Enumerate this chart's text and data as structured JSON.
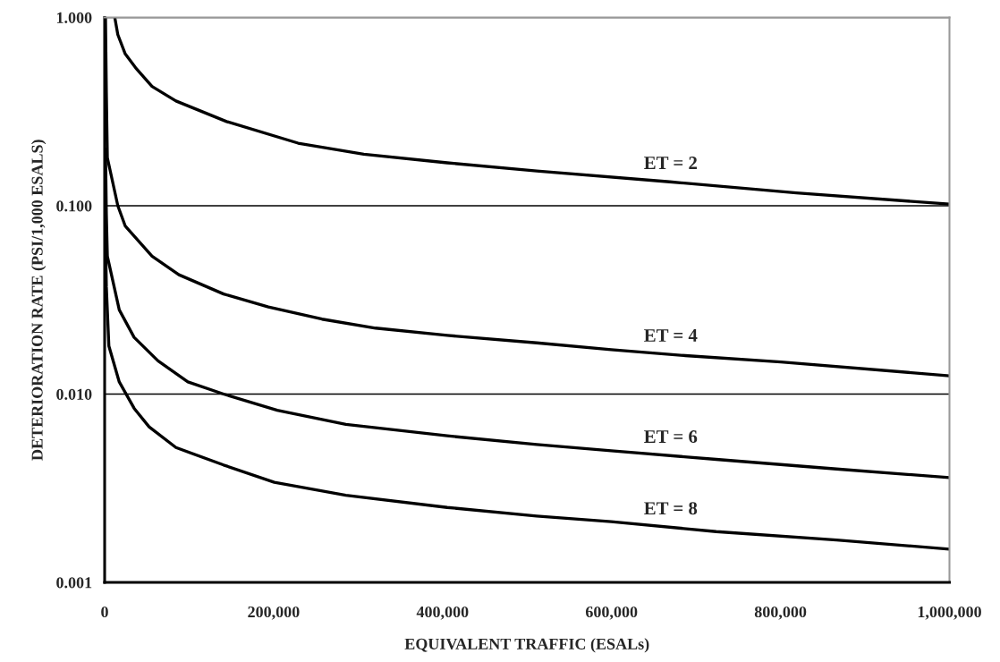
{
  "chart_data": {
    "type": "line",
    "xlabel": "EQUIVALENT TRAFFIC (ESALs)",
    "ylabel": "DETERIORATION RATE (PSI/1,000 ESALS)",
    "log": "y",
    "grid": "y",
    "marker": "none",
    "line_style": "solid",
    "xlim": [
      0,
      1000000
    ],
    "ylim": [
      0.001,
      1
    ],
    "xticks": [
      0,
      {
        "value": 200000,
        "label": "200,000"
      },
      {
        "value": 400000,
        "label": "400,000"
      },
      {
        "value": 600000,
        "label": "600,000"
      },
      {
        "value": 800000,
        "label": "800,000"
      },
      {
        "value": 1000000,
        "label": "1,000,000"
      }
    ],
    "yticks": [
      {
        "value": 0.001,
        "label": "0.001"
      },
      {
        "value": 0.01,
        "label": "0.010"
      },
      {
        "value": 0.1,
        "label": "0.100"
      },
      {
        "value": 1,
        "label": "1.000"
      }
    ],
    "series": [
      {
        "name": "ET = 2",
        "color": "#000000",
        "x": [
          12000,
          15600,
          24400,
          36700,
          56100,
          84400,
          144300,
          229000,
          306700,
          405500,
          511400,
          669000,
          818800,
          1000000
        ],
        "values": [
          1.0,
          0.81,
          0.64,
          0.54,
          0.43,
          0.36,
          0.28,
          0.215,
          0.188,
          0.169,
          0.153,
          0.134,
          0.117,
          0.102
        ]
      },
      {
        "name": "ET = 4",
        "color": "#000000",
        "x": [
          1000,
          2000,
          3200,
          15600,
          24400,
          56100,
          87900,
          140800,
          193800,
          257300,
          320800,
          405500,
          511400,
          599700,
          687300,
          800500,
          1000000
        ],
        "values": [
          1.0,
          0.4,
          0.18,
          0.1,
          0.078,
          0.054,
          0.043,
          0.034,
          0.029,
          0.025,
          0.0224,
          0.0205,
          0.0187,
          0.0172,
          0.016,
          0.0148,
          0.0125
        ]
      },
      {
        "name": "ET = 6",
        "color": "#000000",
        "x": [
          1000,
          2000,
          3200,
          17300,
          34900,
          63200,
          98500,
          140800,
          204300,
          285500,
          405500,
          511400,
          599700,
          723900,
          866300,
          1000000
        ],
        "values": [
          0.2,
          0.09,
          0.054,
          0.028,
          0.02,
          0.015,
          0.0116,
          0.01,
          0.0082,
          0.0069,
          0.006,
          0.0054,
          0.005,
          0.0045,
          0.004,
          0.0036
        ]
      },
      {
        "name": "ET = 8",
        "color": "#000000",
        "x": [
          1000,
          2000,
          5000,
          17300,
          34900,
          52600,
          84400,
          140800,
          200800,
          285500,
          405500,
          511400,
          599700,
          723900,
          866300,
          1000000
        ],
        "values": [
          0.07,
          0.037,
          0.018,
          0.0116,
          0.0084,
          0.0067,
          0.0052,
          0.0042,
          0.0034,
          0.0029,
          0.0025,
          0.00225,
          0.0021,
          0.00186,
          0.00168,
          0.0015
        ]
      }
    ]
  }
}
